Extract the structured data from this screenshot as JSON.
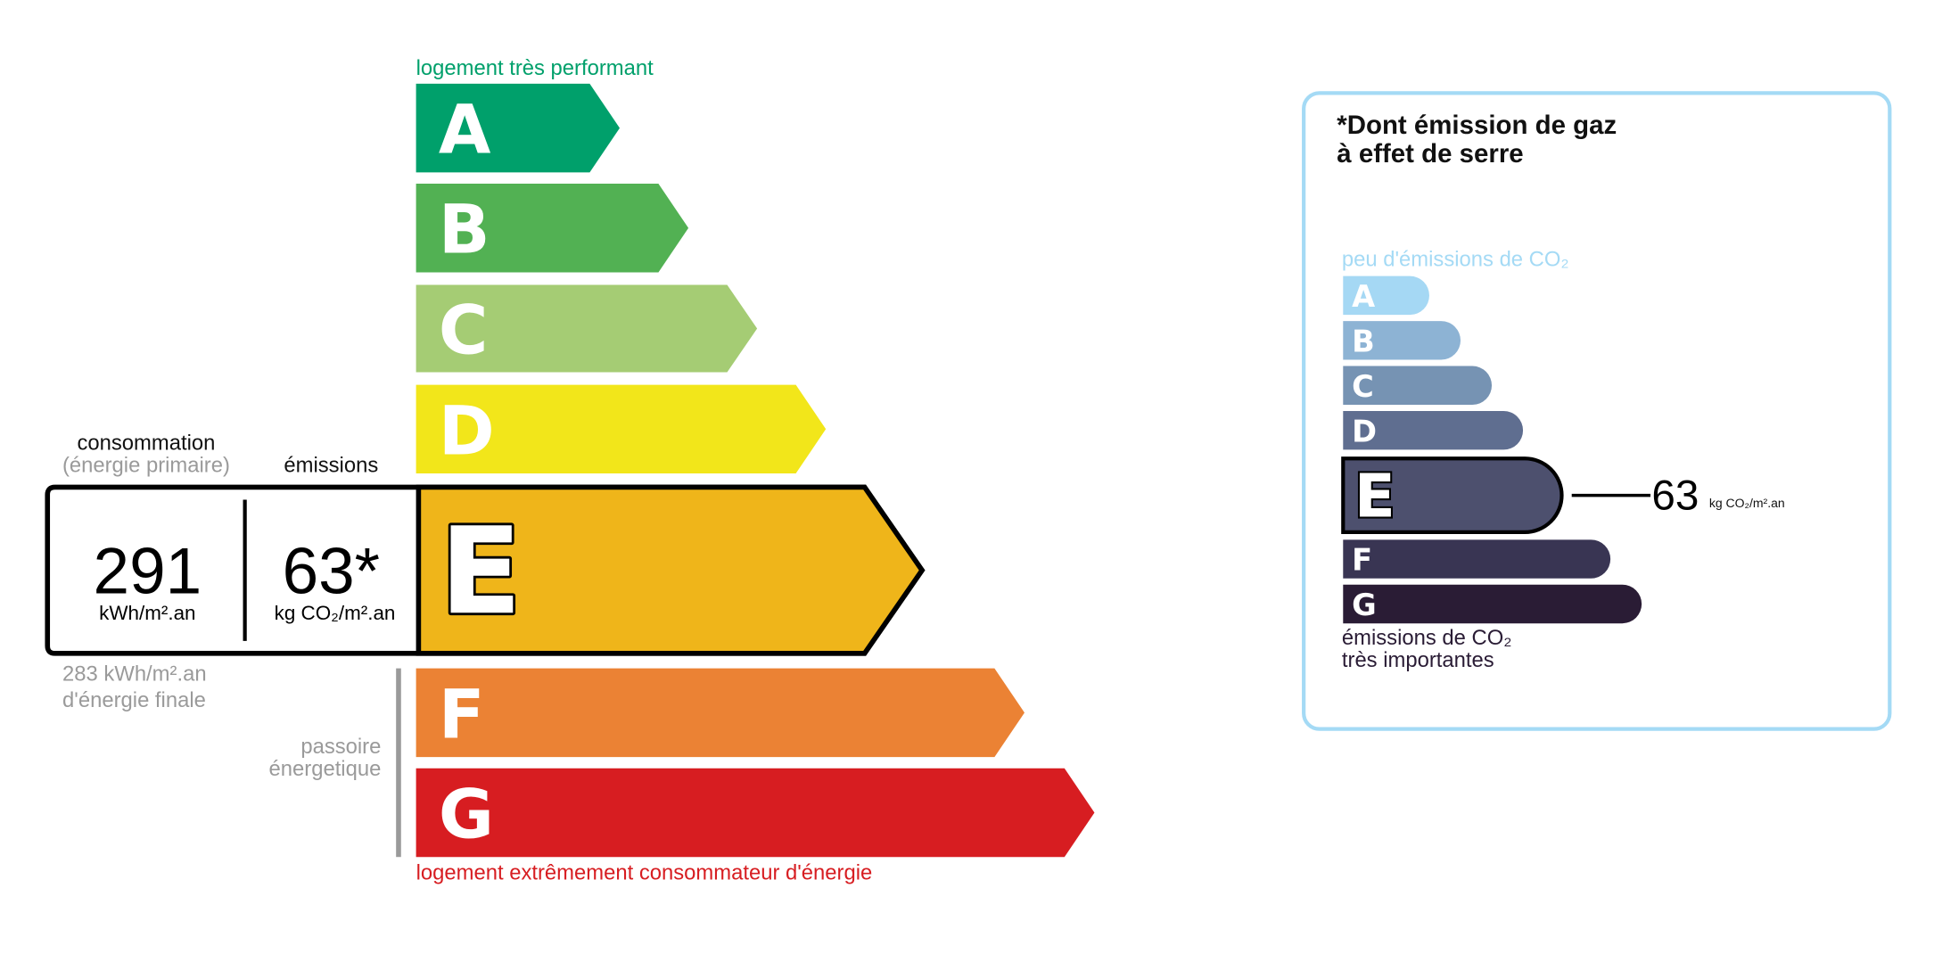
{
  "energy": {
    "top_label": "logement très performant",
    "bottom_label": "logement extrêmement consommateur d'énergie",
    "classes": [
      {
        "letter": "A",
        "color": "#00a06b"
      },
      {
        "letter": "B",
        "color": "#52b153"
      },
      {
        "letter": "C",
        "color": "#a5cc74"
      },
      {
        "letter": "D",
        "color": "#f2e61a"
      },
      {
        "letter": "E",
        "color": "#efb51a"
      },
      {
        "letter": "F",
        "color": "#eb8234"
      },
      {
        "letter": "G",
        "color": "#d71d21"
      }
    ],
    "current_class": "E",
    "consumption_label": "consommation",
    "consumption_sublabel": "(énergie primaire)",
    "emissions_label": "émissions",
    "consumption_value": "291",
    "consumption_unit": "kWh/m².an",
    "emissions_value": "63*",
    "emissions_unit": "kg CO₂/m².an",
    "final_energy_value": "283 kWh/m².an",
    "final_energy_label": "d'énergie finale",
    "passoire_line1": "passoire",
    "passoire_line2": "énergetique"
  },
  "ges": {
    "title_line1": "*Dont émission de gaz",
    "title_line2": "à effet de serre",
    "top_label": "peu d'émissions de CO₂",
    "bottom_line1": "émissions de CO₂",
    "bottom_line2": "très importantes",
    "classes": [
      {
        "letter": "A",
        "color": "#a5d8f4"
      },
      {
        "letter": "B",
        "color": "#8db3d4"
      },
      {
        "letter": "C",
        "color": "#7693b3"
      },
      {
        "letter": "D",
        "color": "#5f6e90"
      },
      {
        "letter": "E",
        "color": "#4d506e"
      },
      {
        "letter": "F",
        "color": "#393553"
      },
      {
        "letter": "G",
        "color": "#2a1c35"
      }
    ],
    "current_class": "E",
    "value": "63",
    "unit": "kg CO₂/m².an",
    "border_color": "#a4daf5"
  }
}
